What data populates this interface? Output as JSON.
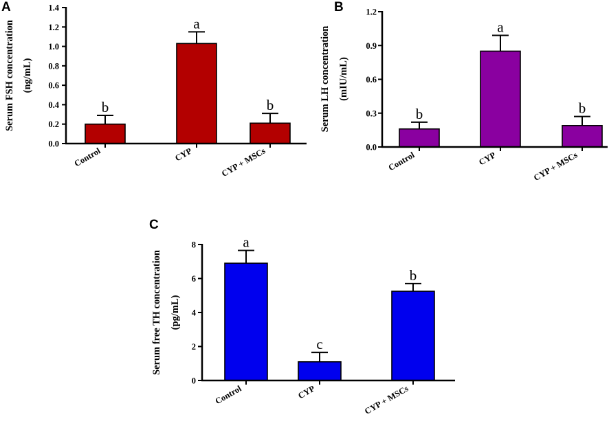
{
  "chart_data": [
    {
      "panel": "A",
      "type": "bar",
      "ylabel_line1": "Serum FSH concentration",
      "ylabel_line2": "(ng/mL)",
      "categories": [
        "Control",
        "CYP",
        "CYP + MSCs"
      ],
      "values": [
        0.2,
        1.03,
        0.21
      ],
      "errors": [
        0.09,
        0.12,
        0.1
      ],
      "significance": [
        "b",
        "a",
        "b"
      ],
      "ylim": [
        0,
        1.4
      ],
      "yticks": [
        0.0,
        0.2,
        0.4,
        0.6,
        0.8,
        1.0,
        1.2,
        1.4
      ],
      "ytick_labels": [
        "0.0",
        "0.2",
        "0.4",
        "0.6",
        "0.8",
        "1.0",
        "1.2",
        "1.4"
      ],
      "color": "#b30000"
    },
    {
      "panel": "B",
      "type": "bar",
      "ylabel_line1": "Serum LH concentration",
      "ylabel_line2": "(mIU/mL)",
      "categories": [
        "Control",
        "CYP",
        "CYP + MSCs"
      ],
      "values": [
        0.16,
        0.85,
        0.19
      ],
      "errors": [
        0.06,
        0.14,
        0.08
      ],
      "significance": [
        "b",
        "a",
        "b"
      ],
      "ylim": [
        0,
        1.2
      ],
      "yticks": [
        0.0,
        0.3,
        0.6,
        0.9,
        1.2
      ],
      "ytick_labels": [
        "0.0",
        "0.3",
        "0.6",
        "0.9",
        "1.2"
      ],
      "color": "#8a00a0"
    },
    {
      "panel": "C",
      "type": "bar",
      "ylabel_line1": "Serum free TH concentration",
      "ylabel_line2": "(pg/mL)",
      "categories": [
        "Control",
        "CYP",
        "CYP + MSCs"
      ],
      "values": [
        6.9,
        1.1,
        5.25
      ],
      "errors": [
        0.75,
        0.55,
        0.45
      ],
      "significance": [
        "a",
        "c",
        "b"
      ],
      "ylim": [
        0,
        8
      ],
      "yticks": [
        0,
        2,
        4,
        6,
        8
      ],
      "ytick_labels": [
        "0",
        "2",
        "4",
        "6",
        "8"
      ],
      "color": "#0000ee"
    }
  ]
}
